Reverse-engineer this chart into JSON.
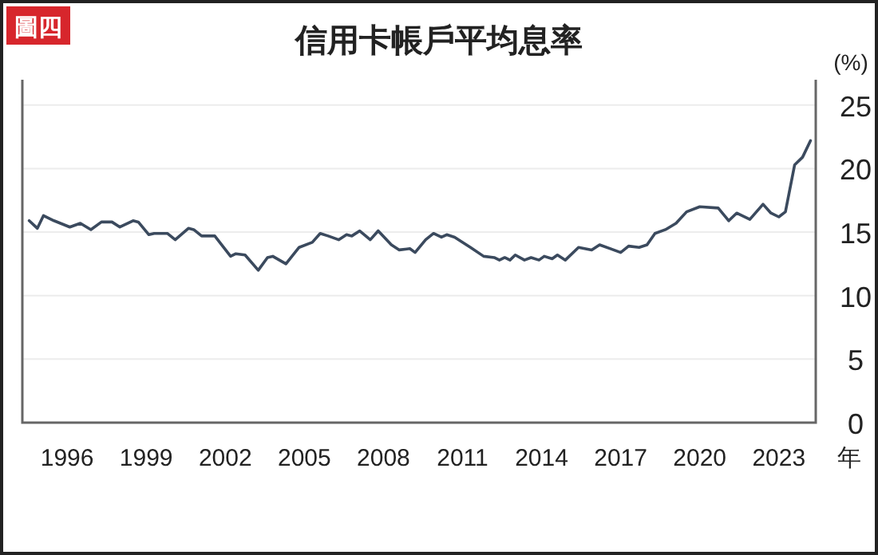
{
  "chart_data": {
    "type": "line",
    "title": "信用卡帳戶平均息率",
    "ylabel": "(%)",
    "xlabel": "年",
    "annotations": [
      "圖四"
    ],
    "x": [
      1994.56,
      1994.87,
      1995.1,
      1995.5,
      1996.1,
      1996.5,
      1996.9,
      1997.3,
      1997.7,
      1998.0,
      1998.5,
      1998.7,
      1999.1,
      1999.3,
      1999.8,
      2000.1,
      2000.6,
      2000.8,
      2001.1,
      2001.6,
      2002.2,
      2002.4,
      2002.75,
      2003.25,
      2003.6,
      2003.8,
      2004.3,
      2004.8,
      2005.3,
      2005.6,
      2005.9,
      2006.3,
      2006.6,
      2006.8,
      2007.1,
      2007.5,
      2007.8,
      2008.3,
      2008.6,
      2009.0,
      2009.2,
      2009.6,
      2009.9,
      2010.2,
      2010.4,
      2010.7,
      2011.3,
      2011.8,
      2012.2,
      2012.4,
      2012.6,
      2012.8,
      2013.0,
      2013.35,
      2013.6,
      2013.9,
      2014.1,
      2014.4,
      2014.6,
      2014.9,
      2015.4,
      2015.9,
      2016.2,
      2017.0,
      2017.3,
      2017.7,
      2018.0,
      2018.3,
      2018.7,
      2019.1,
      2019.5,
      2020.0,
      2020.7,
      2021.1,
      2021.4,
      2021.9,
      2022.4,
      2022.7,
      2023.0,
      2023.25,
      2023.6,
      2023.9,
      2024.2
    ],
    "series": [
      {
        "color": "#3b4a5e",
        "values": [
          15.9,
          15.3,
          16.3,
          15.9,
          15.4,
          15.7,
          15.2,
          15.8,
          15.8,
          15.4,
          15.9,
          15.8,
          14.8,
          14.9,
          14.9,
          14.4,
          15.3,
          15.2,
          14.7,
          14.7,
          13.1,
          13.3,
          13.2,
          12.0,
          13.0,
          13.1,
          12.5,
          13.8,
          14.2,
          14.9,
          14.7,
          14.4,
          14.8,
          14.7,
          15.1,
          14.4,
          15.1,
          14.0,
          13.6,
          13.7,
          13.4,
          14.4,
          14.9,
          14.6,
          14.8,
          14.6,
          13.8,
          13.1,
          13.0,
          12.8,
          13.0,
          12.8,
          13.2,
          12.8,
          13.0,
          12.8,
          13.1,
          12.9,
          13.2,
          12.8,
          13.8,
          13.6,
          14.0,
          13.4,
          13.9,
          13.8,
          14.0,
          14.9,
          15.2,
          15.7,
          16.6,
          17.0,
          16.9,
          15.9,
          16.5,
          16.0,
          17.2,
          16.5,
          16.2,
          16.6,
          20.3,
          20.9,
          22.2
        ]
      }
    ],
    "xlim": [
      1994.3,
      2024.4
    ],
    "xticks": [
      1996,
      1999,
      2002,
      2005,
      2008,
      2011,
      2014,
      2017,
      2020,
      2023
    ],
    "ylim": [
      0,
      27
    ],
    "yticks": [
      0,
      5,
      10,
      15,
      20,
      25
    ],
    "grid": "y",
    "marker": "none",
    "line_style": "solid"
  }
}
